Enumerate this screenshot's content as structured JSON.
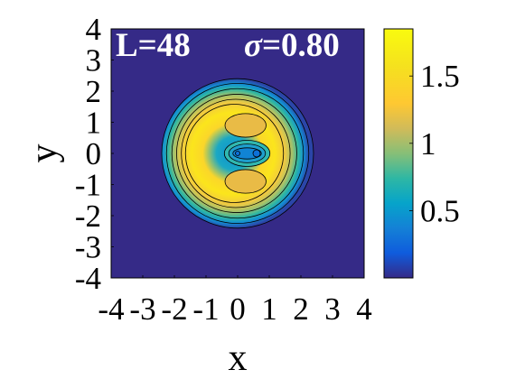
{
  "chart_data": {
    "type": "heatmap",
    "xlabel": "x",
    "ylabel": "y",
    "xlim": [
      -4,
      4
    ],
    "ylim": [
      -4,
      4
    ],
    "x_ticks": [
      "-4",
      "-3",
      "-2",
      "-1",
      "0",
      "1",
      "2",
      "3",
      "4"
    ],
    "y_ticks": [
      "4",
      "3",
      "2",
      "1",
      "0",
      "-1",
      "-2",
      "-3",
      "-4"
    ],
    "annotations": {
      "left": "L=48",
      "sigma_symbol": "σ",
      "sigma_value": "=0.80"
    },
    "colorbar": {
      "range": [
        0.0,
        1.85
      ],
      "ticks": [
        {
          "value": 0.5,
          "label": "0.5"
        },
        {
          "value": 1.0,
          "label": "1"
        },
        {
          "value": 1.5,
          "label": "1.5"
        }
      ],
      "colormap": "parula"
    },
    "contours": [
      {
        "x": 0.0,
        "y": 0.0,
        "rx": 2.4,
        "ry": 2.4
      },
      {
        "x": 0.0,
        "y": 0.0,
        "rx": 2.25,
        "ry": 2.25
      },
      {
        "x": 0.0,
        "y": 0.0,
        "rx": 2.08,
        "ry": 2.08
      },
      {
        "x": -0.03,
        "y": 0.0,
        "rx": 1.9,
        "ry": 1.9
      },
      {
        "x": -0.06,
        "y": 0.0,
        "rx": 1.72,
        "ry": 1.74
      },
      {
        "x": -0.1,
        "y": 0.0,
        "rx": 1.55,
        "ry": 1.58
      }
    ],
    "inner_features": [
      {
        "shape": "lobe",
        "x": 0.25,
        "y": 0.9,
        "value": 1.45
      },
      {
        "shape": "lobe",
        "x": 0.25,
        "y": -0.9,
        "value": 1.45
      },
      {
        "shape": "hole",
        "x": 0.3,
        "y": 0.0,
        "value": 0.35
      },
      {
        "shape": "point",
        "x": 0.0,
        "y": 0.0,
        "value": 0.2
      },
      {
        "shape": "point",
        "x": 0.6,
        "y": 0.0,
        "value": 0.2
      }
    ],
    "background_value": 0.05,
    "peak_value": 1.85
  }
}
